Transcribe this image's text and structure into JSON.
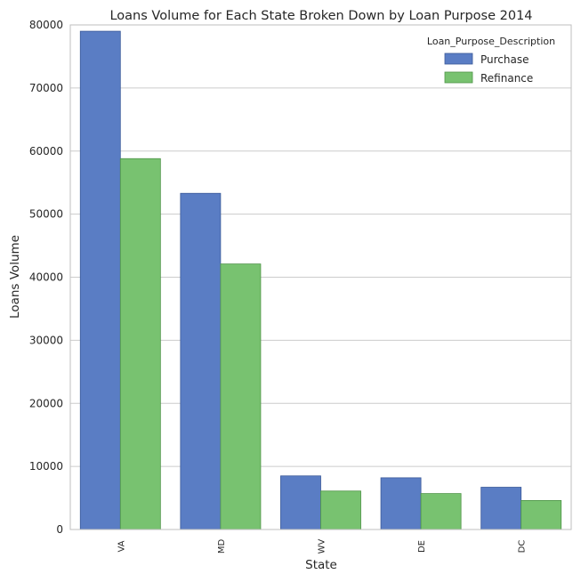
{
  "chart_data": {
    "type": "bar",
    "title": "Loans Volume for Each State Broken Down by Loan Purpose 2014",
    "xlabel": "State",
    "ylabel": "Loans Volume",
    "categories": [
      "VA",
      "MD",
      "WV",
      "DE",
      "DC"
    ],
    "series": [
      {
        "name": "Purchase",
        "values": [
          79000,
          53300,
          8500,
          8200,
          6700
        ],
        "color": "#5a7dc4"
      },
      {
        "name": "Refinance",
        "values": [
          58800,
          42100,
          6100,
          5700,
          4600
        ],
        "color": "#78c270"
      }
    ],
    "ylim": [
      0,
      80000
    ],
    "yticks": [
      "0",
      "10000",
      "20000",
      "30000",
      "40000",
      "50000",
      "60000",
      "70000",
      "80000"
    ],
    "grid": "horizontal",
    "legend": {
      "title": "Loan_Purpose_Description",
      "position": "top-right"
    }
  }
}
